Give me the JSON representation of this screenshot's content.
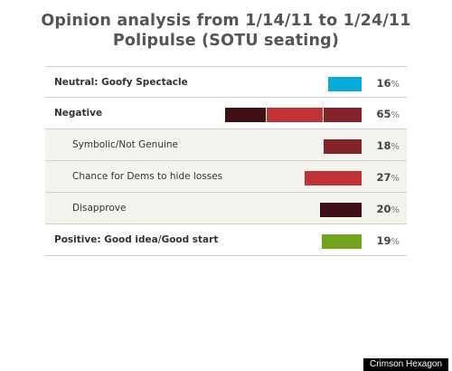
{
  "title_line1": "Opinion analysis from 1/14/11 to 1/24/11",
  "title_line2": "Polipulse (SOTU seating)",
  "percent_sign": "%",
  "credit": "Crimson Hexagon",
  "chart_data": {
    "type": "bar",
    "title": "Opinion analysis from 1/14/11 to 1/24/11 Polipulse (SOTU seating)",
    "rows": [
      {
        "label": "Neutral: Goofy Spectacle",
        "value": 16,
        "level": "top",
        "color": "#0aabd8"
      },
      {
        "label": "Negative",
        "value": 65,
        "level": "top",
        "stacked": [
          {
            "name": "Disapprove",
            "value": 20,
            "color": "#3e0f14"
          },
          {
            "name": "Chance for Dems to hide losses",
            "value": 27,
            "color": "#c13237"
          },
          {
            "name": "Symbolic/Not Genuine",
            "value": 18,
            "color": "#83232a"
          }
        ]
      },
      {
        "label": "Symbolic/Not Genuine",
        "value": 18,
        "level": "sub",
        "color": "#83232a"
      },
      {
        "label": "Chance for Dems to hide losses",
        "value": 27,
        "level": "sub",
        "color": "#c13237"
      },
      {
        "label": "Disapprove",
        "value": 20,
        "level": "sub",
        "color": "#3e0f14"
      },
      {
        "label": "Positive: Good idea/Good start",
        "value": 19,
        "level": "top",
        "color": "#72a51d"
      }
    ],
    "xlim": [
      0,
      65
    ]
  }
}
